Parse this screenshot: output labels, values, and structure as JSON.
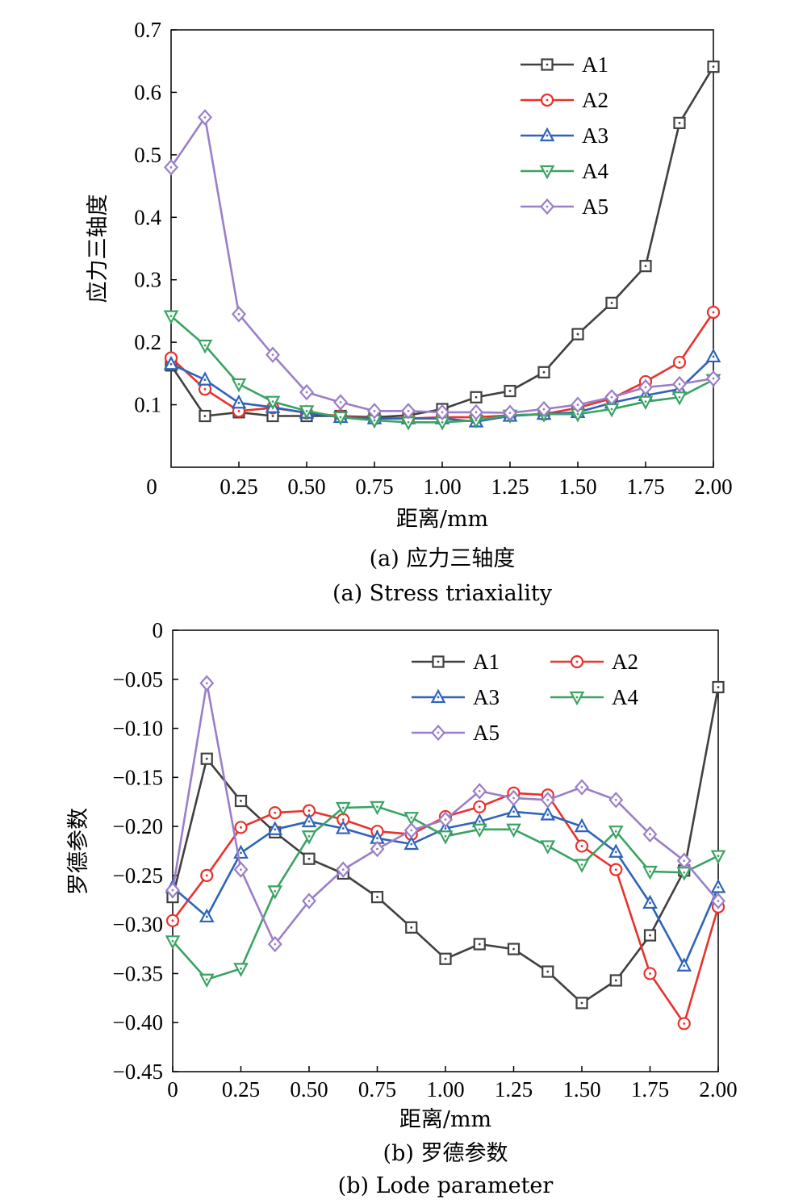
{
  "chart_data": [
    {
      "type": "line",
      "caption_cn": "(a) 应力三轴度",
      "caption_en": "(a) Stress triaxiality",
      "xlabel": "距离/mm",
      "ylabel": "应力三轴度",
      "xlim": [
        0,
        2.0
      ],
      "ylim": [
        0,
        0.7
      ],
      "xticks": [
        0,
        0.25,
        0.5,
        0.75,
        1.0,
        1.25,
        1.5,
        1.75,
        2.0
      ],
      "xtick_labels": [
        "0",
        "0.25",
        "0.50",
        "0.75",
        "1.00",
        "1.25",
        "1.50",
        "1.75",
        "2.00"
      ],
      "yticks": [
        0.1,
        0.2,
        0.3,
        0.4,
        0.5,
        0.6,
        0.7
      ],
      "ytick_labels": [
        "0.1",
        "0.2",
        "0.3",
        "0.4",
        "0.5",
        "0.6",
        "0.7"
      ],
      "grid": false,
      "legend": "top-right",
      "x": [
        0,
        0.125,
        0.25,
        0.375,
        0.5,
        0.625,
        0.75,
        0.875,
        1.0,
        1.125,
        1.25,
        1.375,
        1.5,
        1.625,
        1.75,
        1.875,
        2.0
      ],
      "series": [
        {
          "name": "A1",
          "color": "#404040",
          "marker": "square",
          "values": [
            0.163,
            0.082,
            0.088,
            0.082,
            0.082,
            0.082,
            0.08,
            0.083,
            0.093,
            0.112,
            0.122,
            0.152,
            0.213,
            0.263,
            0.322,
            0.551,
            0.641
          ]
        },
        {
          "name": "A2",
          "color": "#e8322d",
          "marker": "circle",
          "values": [
            0.175,
            0.125,
            0.09,
            0.095,
            0.087,
            0.082,
            0.078,
            0.078,
            0.08,
            0.08,
            0.083,
            0.085,
            0.095,
            0.11,
            0.137,
            0.168,
            0.248
          ]
        },
        {
          "name": "A3",
          "color": "#2e64b8",
          "marker": "triangle-up",
          "values": [
            0.165,
            0.14,
            0.103,
            0.096,
            0.087,
            0.08,
            0.078,
            0.078,
            0.078,
            0.073,
            0.082,
            0.085,
            0.088,
            0.103,
            0.115,
            0.125,
            0.177
          ]
        },
        {
          "name": "A4",
          "color": "#3aa362",
          "marker": "triangle-down",
          "values": [
            0.242,
            0.195,
            0.133,
            0.105,
            0.09,
            0.08,
            0.075,
            0.072,
            0.072,
            0.075,
            0.083,
            0.085,
            0.085,
            0.093,
            0.105,
            0.112,
            0.14
          ]
        },
        {
          "name": "A5",
          "color": "#9b7ec8",
          "marker": "diamond",
          "values": [
            0.48,
            0.56,
            0.245,
            0.18,
            0.12,
            0.104,
            0.09,
            0.09,
            0.088,
            0.088,
            0.087,
            0.093,
            0.1,
            0.112,
            0.128,
            0.133,
            0.142
          ]
        }
      ]
    },
    {
      "type": "line",
      "caption_cn": "(b) 罗德参数",
      "caption_en": "(b) Lode parameter",
      "xlabel": "距离/mm",
      "ylabel": "罗德参数",
      "xlim": [
        0,
        2.0
      ],
      "ylim": [
        -0.45,
        0
      ],
      "xticks": [
        0,
        0.25,
        0.5,
        0.75,
        1.0,
        1.25,
        1.5,
        1.75,
        2.0
      ],
      "xtick_labels": [
        "0",
        "0.25",
        "0.50",
        "0.75",
        "1.00",
        "1.25",
        "1.50",
        "1.75",
        "2.00"
      ],
      "yticks": [
        0,
        -0.05,
        -0.1,
        -0.15,
        -0.2,
        -0.25,
        -0.3,
        -0.35,
        -0.4,
        -0.45
      ],
      "ytick_labels": [
        "0",
        "−0.05",
        "−0.10",
        "−0.15",
        "−0.20",
        "−0.25",
        "−0.30",
        "−0.35",
        "−0.40",
        "−0.45"
      ],
      "grid": false,
      "legend": "top-center",
      "x": [
        0,
        0.125,
        0.25,
        0.375,
        0.5,
        0.625,
        0.75,
        0.875,
        1.0,
        1.125,
        1.25,
        1.375,
        1.5,
        1.625,
        1.75,
        1.875,
        2.0
      ],
      "series": [
        {
          "name": "A1",
          "color": "#404040",
          "marker": "square",
          "values": [
            -0.272,
            -0.131,
            -0.174,
            -0.206,
            -0.233,
            -0.248,
            -0.272,
            -0.303,
            -0.335,
            -0.32,
            -0.325,
            -0.348,
            -0.38,
            -0.357,
            -0.311,
            -0.245,
            -0.058
          ]
        },
        {
          "name": "A2",
          "color": "#e8322d",
          "marker": "circle",
          "values": [
            -0.296,
            -0.25,
            -0.201,
            -0.186,
            -0.184,
            -0.193,
            -0.205,
            -0.208,
            -0.19,
            -0.18,
            -0.166,
            -0.168,
            -0.22,
            -0.244,
            -0.35,
            -0.401,
            -0.282
          ]
        },
        {
          "name": "A3",
          "color": "#2e64b8",
          "marker": "triangle-up",
          "values": [
            -0.262,
            -0.292,
            -0.227,
            -0.203,
            -0.195,
            -0.202,
            -0.212,
            -0.218,
            -0.202,
            -0.195,
            -0.185,
            -0.188,
            -0.2,
            -0.226,
            -0.278,
            -0.342,
            -0.262
          ]
        },
        {
          "name": "A4",
          "color": "#3aa362",
          "marker": "triangle-down",
          "values": [
            -0.317,
            -0.356,
            -0.345,
            -0.266,
            -0.21,
            -0.181,
            -0.18,
            -0.191,
            -0.21,
            -0.203,
            -0.203,
            -0.22,
            -0.239,
            -0.205,
            -0.246,
            -0.247,
            -0.23
          ]
        },
        {
          "name": "A5",
          "color": "#9b7ec8",
          "marker": "diamond",
          "values": [
            -0.265,
            -0.054,
            -0.244,
            -0.32,
            -0.276,
            -0.244,
            -0.223,
            -0.204,
            -0.193,
            -0.164,
            -0.171,
            -0.173,
            -0.16,
            -0.173,
            -0.208,
            -0.235,
            -0.276
          ]
        }
      ]
    }
  ]
}
